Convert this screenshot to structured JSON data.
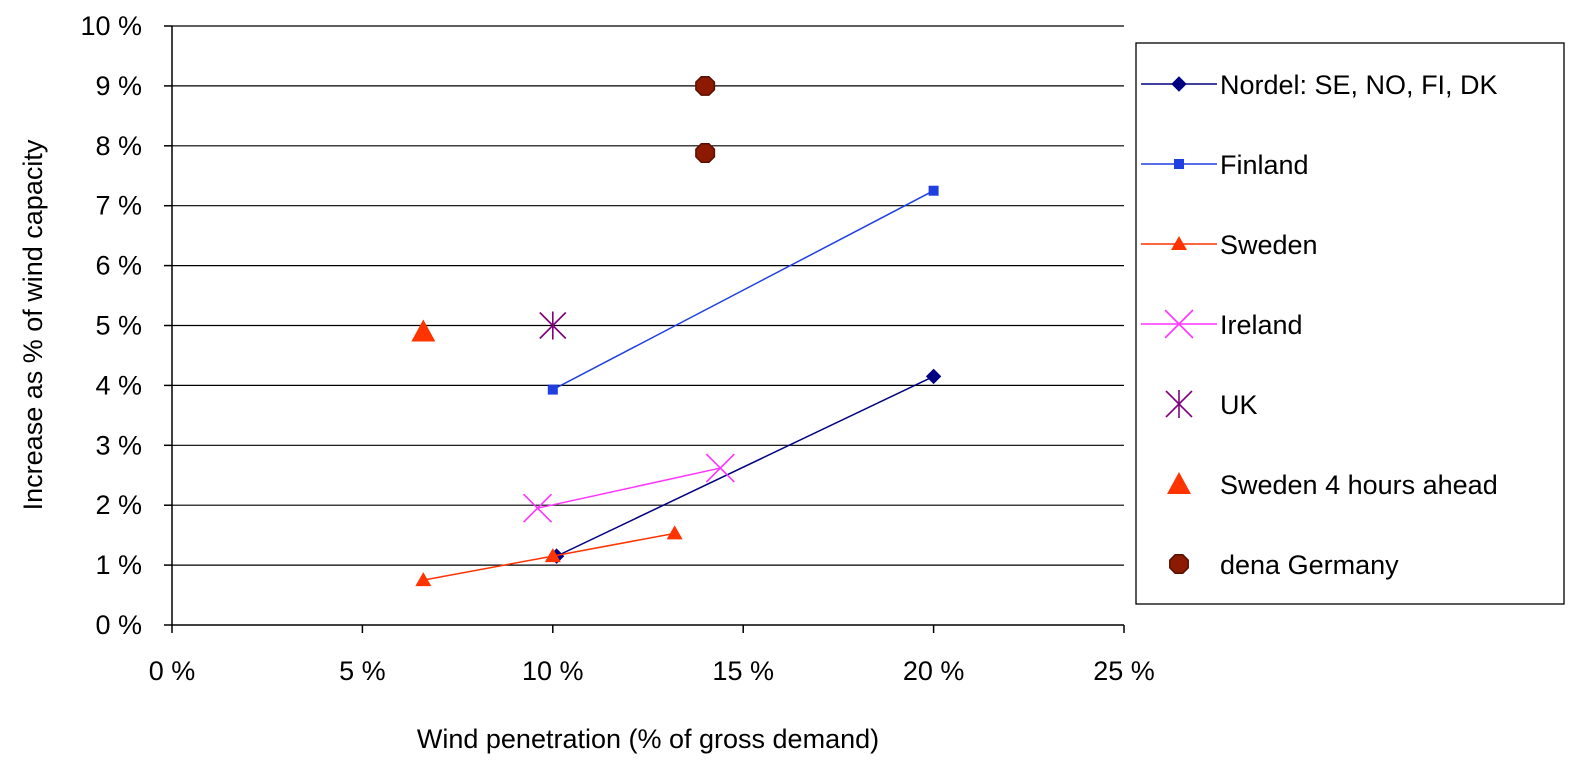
{
  "chart_data": {
    "type": "scatter",
    "title": "",
    "xlabel": "Wind penetration (% of gross demand)",
    "ylabel": "Increase as % of wind capacity",
    "xlim": [
      0,
      25
    ],
    "ylim": [
      0,
      10
    ],
    "x_ticks": [
      0,
      5,
      10,
      15,
      20,
      25
    ],
    "x_tick_labels": [
      "0 %",
      "5 %",
      "10 %",
      "15 %",
      "20 %",
      "25 %"
    ],
    "y_ticks": [
      0,
      1,
      2,
      3,
      4,
      5,
      6,
      7,
      8,
      9,
      10
    ],
    "y_tick_labels": [
      "0 %",
      "1 %",
      "2 %",
      "3 %",
      "4 %",
      "5 %",
      "6 %",
      "7 %",
      "8 %",
      "9 %",
      "10 %"
    ],
    "grid": "horizontal",
    "legend_position": "right",
    "series": [
      {
        "name": "Nordel: SE, NO, FI, DK",
        "marker": "diamond",
        "line": true,
        "color": "#000080",
        "x": [
          10.1,
          20
        ],
        "y": [
          1.15,
          4.15
        ]
      },
      {
        "name": "Finland",
        "marker": "square",
        "line": true,
        "color": "#1f3fe0",
        "x": [
          10,
          20
        ],
        "y": [
          3.93,
          7.25
        ]
      },
      {
        "name": "Sweden",
        "marker": "triangle",
        "line": true,
        "color": "#ff3300",
        "x": [
          6.6,
          10,
          13.2
        ],
        "y": [
          0.75,
          1.15,
          1.53
        ]
      },
      {
        "name": "Ireland",
        "marker": "x",
        "line": true,
        "color": "#ff33ff",
        "x": [
          9.6,
          14.4
        ],
        "y": [
          1.95,
          2.62
        ]
      },
      {
        "name": "UK",
        "marker": "asterisk",
        "line": false,
        "color": "#800080",
        "x": [
          10
        ],
        "y": [
          5.0
        ]
      },
      {
        "name": "Sweden 4 hours ahead",
        "marker": "triangle-large",
        "line": false,
        "color": "#ff3300",
        "x": [
          6.6
        ],
        "y": [
          4.9
        ]
      },
      {
        "name": "dena Germany",
        "marker": "octagon",
        "line": false,
        "color": "#8b1a00",
        "x": [
          14,
          14
        ],
        "y": [
          7.88,
          9.0
        ]
      }
    ]
  }
}
